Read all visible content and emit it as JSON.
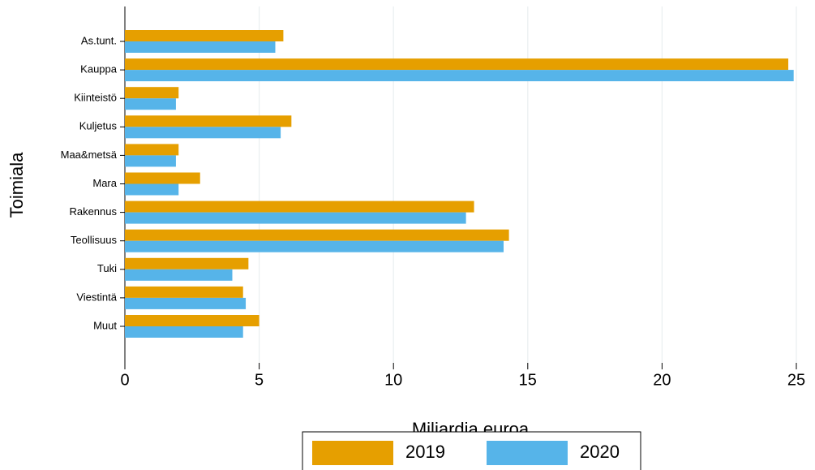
{
  "chart_data": {
    "type": "bar",
    "orientation": "horizontal",
    "x_label": "Miljardia euroa",
    "y_label": "Toimiala",
    "categories": [
      "As.tunt.",
      "Kauppa",
      "Kiinteistö",
      "Kuljetus",
      "Maa&metsä",
      "Mara",
      "Rakennus",
      "Teollisuus",
      "Tuki",
      "Viestintä",
      "Muut"
    ],
    "series": [
      {
        "name": "2019",
        "color": "#e69f00",
        "values": [
          5.9,
          24.7,
          2.0,
          6.2,
          2.0,
          2.8,
          13.0,
          14.3,
          4.6,
          4.4,
          5.0
        ]
      },
      {
        "name": "2020",
        "color": "#56b4e9",
        "values": [
          5.6,
          24.9,
          1.9,
          5.8,
          1.9,
          2.0,
          12.7,
          14.1,
          4.0,
          4.5,
          4.4
        ]
      }
    ],
    "xlim": [
      0,
      25
    ],
    "xticks": [
      0,
      5,
      10,
      15,
      20,
      25
    ],
    "grid": true,
    "legend": "bottom"
  }
}
